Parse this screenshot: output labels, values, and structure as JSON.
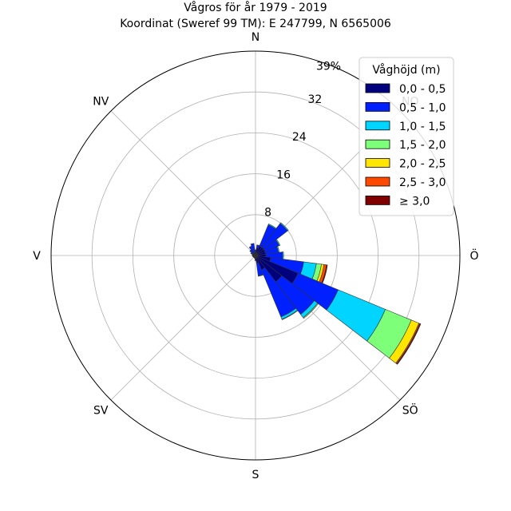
{
  "chart_data": {
    "type": "windrose",
    "title": "Vågros för år 1979 - 2019",
    "subtitle": "Koordinat (Sweref 99 TM): E 247799, N 6565006",
    "direction_labels": [
      "N",
      "NO",
      "Ö",
      "SÖ",
      "S",
      "SV",
      "V",
      "NV"
    ],
    "radial_ticks": [
      "8",
      "16",
      "24",
      "32",
      "39%"
    ],
    "rmax": 40,
    "legend_title": "Våghöjd (m)",
    "legend": [
      "0,0 - 0,5",
      "0,5 - 1,0",
      "1,0 - 1,5",
      "1,5 - 2,0",
      "2,0 - 2,5",
      "2,5 - 3,0",
      "≥ 3,0"
    ],
    "colors": [
      "#00007f",
      "#0020ff",
      "#00d4ff",
      "#7dff7a",
      "#ffe600",
      "#ff4800",
      "#7f0000"
    ],
    "legend_position": "top-right",
    "sector_width_deg": 15,
    "directions_deg": [
      0,
      15,
      30,
      45,
      60,
      75,
      90,
      105,
      120,
      135,
      150,
      165,
      180,
      195,
      210,
      225,
      240,
      255,
      270,
      285,
      300,
      315,
      330,
      345
    ],
    "cumulative_percent": [
      [
        0.8,
        1.0,
        1.1,
        1.1,
        1.1,
        1.1,
        1.1
      ],
      [
        1.5,
        2.0,
        2.1,
        2.1,
        2.1,
        2.1,
        2.1
      ],
      [
        2.0,
        6.5,
        6.7,
        6.7,
        6.7,
        6.7,
        6.7
      ],
      [
        2.0,
        7.9,
        8.1,
        8.1,
        8.1,
        8.1,
        8.1
      ],
      [
        2.0,
        5.0,
        5.2,
        5.2,
        5.2,
        5.2,
        5.2
      ],
      [
        2.0,
        4.5,
        4.7,
        4.7,
        4.7,
        4.7,
        4.7
      ],
      [
        2.0,
        5.3,
        5.5,
        5.5,
        5.5,
        5.5,
        5.5
      ],
      [
        3.0,
        9.5,
        12.0,
        13.0,
        13.5,
        14.0,
        14.2
      ],
      [
        9.0,
        17.5,
        27.5,
        33.0,
        34.6,
        34.8,
        35.0
      ],
      [
        6.5,
        14.5,
        15.3,
        15.5,
        15.5,
        15.5,
        15.5
      ],
      [
        3.0,
        13.0,
        13.5,
        13.6,
        13.6,
        13.6,
        13.6
      ],
      [
        1.5,
        4.0,
        4.1,
        4.1,
        4.1,
        4.1,
        4.1
      ],
      [
        0.8,
        1.0,
        1.0,
        1.0,
        1.0,
        1.0,
        1.0
      ],
      [
        0.5,
        0.6,
        0.6,
        0.6,
        0.6,
        0.6,
        0.6
      ],
      [
        0.4,
        0.5,
        0.5,
        0.5,
        0.5,
        0.5,
        0.5
      ],
      [
        0.4,
        0.5,
        0.5,
        0.5,
        0.5,
        0.5,
        0.5
      ],
      [
        0.4,
        0.5,
        0.5,
        0.5,
        0.5,
        0.5,
        0.5
      ],
      [
        0.5,
        0.6,
        0.6,
        0.6,
        0.6,
        0.6,
        0.6
      ],
      [
        0.5,
        0.6,
        0.6,
        0.6,
        0.6,
        0.6,
        0.6
      ],
      [
        0.5,
        0.7,
        0.7,
        0.7,
        0.7,
        0.7,
        0.7
      ],
      [
        0.5,
        1.0,
        1.0,
        1.0,
        1.0,
        1.0,
        1.0
      ],
      [
        0.6,
        1.4,
        1.4,
        1.4,
        1.4,
        1.4,
        1.4
      ],
      [
        0.6,
        2.0,
        2.0,
        2.0,
        2.0,
        2.0,
        2.0
      ],
      [
        0.6,
        2.4,
        2.4,
        2.4,
        2.4,
        2.4,
        2.4
      ]
    ],
    "grid": true
  }
}
